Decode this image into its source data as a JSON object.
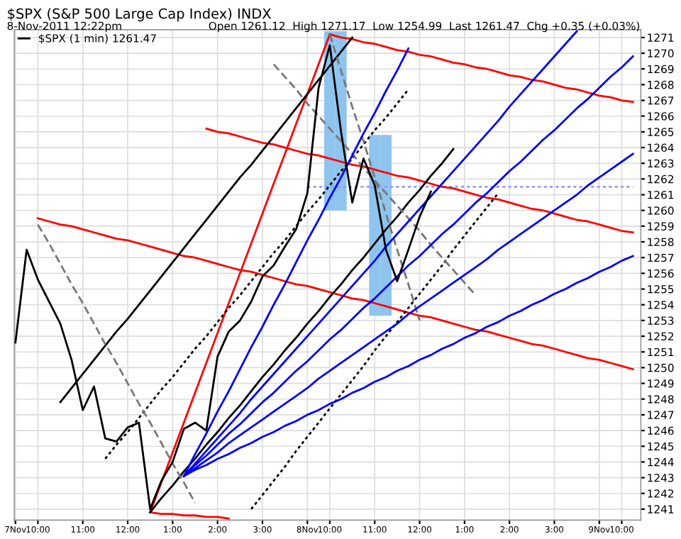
{
  "chart_data": {
    "type": "line",
    "title": "$SPX (S&P 500 Large Cap Index) INDX",
    "subtitle": "8-Nov-2011 12:22pm",
    "annotations": [
      "Open 1261.12  High 1271.17  Low 1254.99  Last 1261.47  Chg +0.35 (+0.03%)"
    ],
    "categories": [
      "7Nov",
      null,
      "10:00",
      null,
      null,
      null,
      "11:00",
      null,
      null,
      null,
      "12:00",
      null,
      null,
      null,
      "1:00",
      null,
      null,
      null,
      "2:00",
      null,
      null,
      null,
      "3:00",
      null,
      null,
      null,
      "8Nov",
      null,
      "10:00",
      null,
      null,
      null,
      "11:00",
      null,
      null,
      null,
      "12:00",
      null,
      null,
      null,
      "1:00",
      null,
      null,
      null,
      "2:00",
      null,
      null,
      null,
      "3:00",
      null,
      null,
      null,
      "9Nov",
      null,
      "10:00",
      null
    ],
    "ylim": [
      1240.3,
      1271.5
    ],
    "yticks": [
      1241,
      1242,
      1243,
      1244,
      1245,
      1246,
      1247,
      1248,
      1249,
      1250,
      1251,
      1252,
      1253,
      1254,
      1255,
      1256,
      1257,
      1258,
      1259,
      1260,
      1261,
      1262,
      1263,
      1264,
      1265,
      1266,
      1267,
      1268,
      1269,
      1270,
      1271
    ],
    "grid": true,
    "legend": "top left",
    "series": [
      {
        "type": "bar",
        "color": "#8ec4ee",
        "values": [
          null,
          null,
          null,
          null,
          null,
          null,
          null,
          null,
          null,
          null,
          null,
          null,
          null,
          null,
          null,
          null,
          null,
          null,
          null,
          null,
          null,
          null,
          null,
          null,
          null,
          null,
          null,
          null,
          11.4,
          11.4,
          null,
          null,
          null,
          null,
          null,
          null,
          null,
          null,
          null,
          null,
          null,
          null,
          null,
          null,
          null,
          null,
          null,
          null,
          null,
          null,
          null,
          null,
          null,
          null,
          null,
          null
        ],
        "base": [
          null,
          null,
          null,
          null,
          null,
          null,
          null,
          null,
          null,
          null,
          null,
          null,
          null,
          null,
          null,
          null,
          null,
          null,
          null,
          null,
          null,
          null,
          null,
          null,
          null,
          null,
          null,
          null,
          1260.0,
          1260.0,
          null,
          null,
          null,
          null,
          null,
          null,
          null,
          null,
          null,
          null,
          null,
          null,
          null,
          null,
          null,
          null,
          null,
          null,
          null,
          null,
          null,
          null,
          null,
          null,
          null,
          null
        ]
      },
      {
        "type": "bar",
        "color": "#8ec4ee",
        "values": [
          null,
          null,
          null,
          null,
          null,
          null,
          null,
          null,
          null,
          null,
          null,
          null,
          null,
          null,
          null,
          null,
          null,
          null,
          null,
          null,
          null,
          null,
          null,
          null,
          null,
          null,
          null,
          null,
          null,
          null,
          null,
          null,
          11.5,
          11.5,
          null,
          null,
          null,
          null,
          null,
          null,
          null,
          null,
          null,
          null,
          null,
          null,
          null,
          null,
          null,
          null,
          null,
          null,
          null,
          null,
          null,
          null
        ],
        "base": [
          null,
          null,
          null,
          null,
          null,
          null,
          null,
          null,
          null,
          null,
          null,
          null,
          null,
          null,
          null,
          null,
          null,
          null,
          null,
          null,
          null,
          null,
          null,
          null,
          null,
          null,
          null,
          null,
          null,
          null,
          null,
          null,
          1253.3,
          1253.3,
          null,
          null,
          null,
          null,
          null,
          null,
          null,
          null,
          null,
          null,
          null,
          null,
          null,
          null,
          null,
          null,
          null,
          null,
          null,
          null,
          null,
          null
        ]
      },
      {
        "color": "#9999ff",
        "line_style": "dotted",
        "values": [
          null,
          null,
          null,
          null,
          null,
          null,
          null,
          null,
          null,
          null,
          null,
          null,
          null,
          null,
          null,
          null,
          null,
          null,
          null,
          null,
          null,
          null,
          null,
          null,
          null,
          null,
          1261.5,
          1261.5,
          1261.5,
          1261.5,
          1261.5,
          1261.5,
          1261.5,
          1261.5,
          1261.5,
          1261.5,
          1261.5,
          1261.5,
          1261.5,
          1261.5,
          1261.5,
          1261.5,
          1261.5,
          1261.5,
          1261.5,
          1261.5,
          1261.5,
          1261.5,
          1261.5,
          1261.5,
          1261.5,
          1261.5,
          1261.5,
          1261.5,
          1261.5,
          1261.5
        ]
      },
      {
        "color": "#ff0000",
        "values": [
          null,
          null,
          null,
          null,
          null,
          null,
          null,
          null,
          null,
          null,
          null,
          null,
          1240.8,
          1242.7,
          1244.6,
          1246.5,
          1248.4,
          1250.3,
          1252.2,
          1254.1,
          1256.0,
          1257.9,
          1259.8,
          1261.7,
          1263.6,
          1265.5,
          1267.4,
          1269.3,
          1271.2,
          null,
          null,
          null,
          null,
          null,
          null,
          null,
          null,
          null,
          null,
          null,
          null,
          null,
          null,
          null,
          null,
          null,
          null,
          null,
          null,
          null,
          null,
          null,
          null,
          null,
          null,
          null
        ]
      },
      {
        "color": "#ff0000",
        "values": [
          null,
          null,
          null,
          null,
          null,
          null,
          null,
          null,
          null,
          null,
          null,
          null,
          null,
          null,
          null,
          null,
          null,
          null,
          null,
          null,
          null,
          null,
          null,
          null,
          null,
          null,
          null,
          null,
          1271.2,
          1271.0,
          1270.9,
          1270.7,
          1270.6,
          1270.4,
          1270.2,
          1270.1,
          1269.9,
          1269.8,
          1269.6,
          1269.4,
          1269.3,
          1269.1,
          1269.0,
          1268.8,
          1268.6,
          1268.5,
          1268.3,
          1268.2,
          1268.0,
          1267.8,
          1267.7,
          1267.5,
          1267.3,
          1267.2,
          1267.0,
          1266.9
        ]
      },
      {
        "color": "#ff0000",
        "values": [
          null,
          null,
          null,
          null,
          null,
          null,
          null,
          null,
          null,
          null,
          null,
          null,
          null,
          null,
          null,
          null,
          null,
          1265.2,
          1265.0,
          1264.9,
          1264.7,
          1264.5,
          1264.3,
          1264.2,
          1264.0,
          1263.8,
          1263.6,
          1263.5,
          1263.3,
          1263.1,
          1262.9,
          1262.8,
          1262.6,
          1262.4,
          1262.2,
          1262.1,
          1261.9,
          1261.7,
          1261.5,
          1261.4,
          1261.2,
          1261.0,
          1260.8,
          1260.7,
          1260.5,
          1260.3,
          1260.1,
          1260.0,
          1259.8,
          1259.6,
          1259.4,
          1259.3,
          1259.1,
          1258.9,
          1258.7,
          1258.6
        ]
      },
      {
        "color": "#ff0000",
        "values": [
          null,
          null,
          1259.5,
          1259.3,
          1259.1,
          1259.0,
          1258.8,
          1258.6,
          1258.4,
          1258.2,
          1258.1,
          1257.9,
          1257.7,
          1257.5,
          1257.3,
          1257.1,
          1257.0,
          1256.8,
          1256.6,
          1256.4,
          1256.2,
          1256.1,
          1255.9,
          1255.7,
          1255.5,
          1255.3,
          1255.2,
          1255.0,
          1254.8,
          1254.6,
          1254.4,
          1254.3,
          1254.1,
          1253.9,
          1253.7,
          1253.5,
          1253.3,
          1253.2,
          1253.0,
          1252.8,
          1252.6,
          1252.4,
          1252.3,
          1252.1,
          1251.9,
          1251.7,
          1251.5,
          1251.4,
          1251.2,
          1251.0,
          1250.8,
          1250.6,
          1250.5,
          1250.3,
          1250.1,
          1249.9
        ]
      },
      {
        "color": "#ff0000",
        "values": [
          null,
          null,
          null,
          null,
          null,
          null,
          null,
          null,
          null,
          null,
          null,
          null,
          1240.8,
          1240.7,
          1240.7,
          1240.6,
          1240.6,
          1240.5,
          1240.5,
          1240.4,
          null,
          null,
          null,
          null,
          null,
          null,
          null,
          null,
          null,
          null,
          null,
          null,
          null,
          null,
          null,
          null,
          null,
          null,
          null,
          null,
          null,
          null,
          null,
          null,
          null,
          null,
          null,
          null,
          null,
          null,
          null,
          null,
          null,
          null,
          null,
          null
        ]
      },
      {
        "color": "#000000",
        "values": [
          null,
          null,
          null,
          null,
          1247.8,
          1248.7,
          1249.6,
          1250.5,
          1251.4,
          1252.3,
          1253.1,
          1254.0,
          1254.9,
          1255.8,
          1256.7,
          1257.6,
          1258.5,
          1259.4,
          1260.3,
          1261.2,
          1262.1,
          1262.9,
          1263.8,
          1264.7,
          1265.6,
          1266.5,
          1267.4,
          1268.3,
          1269.2,
          1270.1,
          1271.0,
          null,
          null,
          null,
          null,
          null,
          null,
          null,
          null,
          null,
          null,
          null,
          null,
          null,
          null,
          null,
          null,
          null,
          null,
          null,
          null,
          null,
          null,
          null,
          null,
          null
        ]
      },
      {
        "color": "#000000",
        "values": [
          null,
          null,
          null,
          null,
          null,
          null,
          null,
          null,
          null,
          null,
          null,
          null,
          1240.8,
          1241.7,
          1242.5,
          1243.4,
          1244.2,
          1245.1,
          1245.9,
          1246.8,
          1247.6,
          1248.5,
          1249.4,
          1250.2,
          1251.1,
          1251.9,
          1252.8,
          1253.6,
          1254.5,
          1255.3,
          1256.2,
          1257.0,
          1257.9,
          1258.8,
          1259.6,
          1260.5,
          1261.3,
          1262.2,
          1263.0,
          1263.9,
          null,
          null,
          null,
          null,
          null,
          null,
          null,
          null,
          null,
          null,
          null,
          null,
          null,
          null,
          null,
          null
        ]
      },
      {
        "color": "#000000",
        "line_style": "dotted",
        "values": [
          null,
          null,
          null,
          null,
          null,
          null,
          null,
          null,
          1244.2,
          1245.1,
          1245.9,
          1246.8,
          1247.7,
          1248.6,
          1249.4,
          1250.3,
          1251.2,
          1252.0,
          1252.9,
          1253.8,
          1254.6,
          1255.5,
          1256.4,
          1257.3,
          1258.1,
          1259.0,
          1259.9,
          1260.7,
          1261.6,
          1262.5,
          1263.3,
          1264.2,
          1265.1,
          1265.9,
          1266.8,
          1267.7,
          null,
          null,
          null,
          null,
          null,
          null,
          null,
          null,
          null,
          null,
          null,
          null,
          null,
          null,
          null,
          null,
          null,
          null,
          null,
          null
        ]
      },
      {
        "color": "#000000",
        "line_style": "dotted",
        "values": [
          null,
          null,
          null,
          null,
          null,
          null,
          null,
          null,
          null,
          null,
          null,
          null,
          null,
          null,
          null,
          null,
          null,
          null,
          null,
          null,
          null,
          1241.0,
          1241.9,
          1242.8,
          1243.7,
          1244.7,
          1245.6,
          1246.5,
          1247.4,
          1248.3,
          1249.2,
          1250.1,
          1251.1,
          1252.0,
          1252.9,
          1253.8,
          1254.7,
          1255.6,
          1256.5,
          1257.5,
          1258.4,
          1259.3,
          1260.2,
          1261.1,
          null,
          null,
          null,
          null,
          null,
          null,
          null,
          null,
          null,
          null,
          null,
          null
        ]
      },
      {
        "color": "#777777",
        "line_style": "dashed",
        "values": [
          null,
          null,
          1259.1,
          1257.9,
          1256.6,
          1255.3,
          1254.1,
          1252.8,
          1251.5,
          1250.3,
          1249.0,
          1247.7,
          1246.5,
          1245.2,
          1243.9,
          1242.7,
          1241.4,
          null,
          null,
          null,
          null,
          null,
          null,
          null,
          null,
          null,
          null,
          null,
          null,
          null,
          null,
          null,
          null,
          null,
          null,
          null,
          null,
          null,
          null,
          null,
          null,
          null,
          null,
          null,
          null,
          null,
          null,
          null,
          null,
          null,
          null,
          null,
          null,
          null,
          null,
          null
        ]
      },
      {
        "color": "#777777",
        "line_style": "dashed",
        "values": [
          null,
          null,
          null,
          null,
          null,
          null,
          null,
          null,
          null,
          null,
          null,
          null,
          null,
          null,
          null,
          null,
          null,
          null,
          null,
          null,
          null,
          null,
          null,
          null,
          null,
          null,
          null,
          null,
          1271.2,
          1268.9,
          1266.6,
          1264.4,
          1262.1,
          1259.8,
          1257.5,
          1255.3,
          1253.0,
          null,
          null,
          null,
          null,
          null,
          null,
          null,
          null,
          null,
          null,
          null,
          null,
          null,
          null,
          null,
          null,
          null,
          null,
          null
        ]
      },
      {
        "color": "#777777",
        "line_style": "dashed",
        "values": [
          null,
          null,
          null,
          null,
          null,
          null,
          null,
          null,
          null,
          null,
          null,
          null,
          null,
          null,
          null,
          null,
          null,
          null,
          null,
          null,
          null,
          null,
          null,
          1269.3,
          1268.5,
          1267.7,
          1266.8,
          1266.0,
          1265.2,
          1264.4,
          1263.6,
          1262.7,
          1261.9,
          1261.1,
          1260.3,
          1259.5,
          1258.7,
          1257.8,
          1257.0,
          1256.2,
          1255.4,
          1254.6,
          null,
          null,
          null,
          null,
          null,
          null,
          null,
          null,
          null,
          null,
          null,
          null,
          null,
          null
        ]
      },
      {
        "color": "#0000ff",
        "values": [
          null,
          null,
          null,
          null,
          null,
          null,
          null,
          null,
          null,
          null,
          null,
          null,
          null,
          null,
          null,
          1243.1,
          1244.5,
          1245.8,
          1247.2,
          1248.5,
          1249.9,
          1251.3,
          1252.6,
          1254.0,
          1255.3,
          1256.7,
          1258.1,
          1259.4,
          1260.8,
          1262.1,
          1263.5,
          1264.9,
          1266.2,
          1267.6,
          1268.9,
          1270.3,
          null,
          null,
          null,
          null,
          null,
          null,
          null,
          null,
          null,
          null,
          null,
          null,
          null,
          null,
          null,
          null,
          null,
          null,
          null,
          null
        ]
      },
      {
        "color": "#0000ff",
        "values": [
          null,
          null,
          null,
          null,
          null,
          null,
          null,
          null,
          null,
          null,
          null,
          null,
          null,
          null,
          null,
          1243.1,
          1243.9,
          1244.7,
          1245.5,
          1246.3,
          1247.1,
          1248.0,
          1248.8,
          1249.6,
          1250.4,
          1251.2,
          1252.0,
          1252.8,
          1253.6,
          1254.4,
          1255.2,
          1256.0,
          1256.8,
          1257.7,
          1258.5,
          1259.3,
          1260.1,
          1260.9,
          1261.7,
          1262.5,
          1263.3,
          1264.1,
          1264.9,
          1265.7,
          1266.6,
          1267.4,
          1268.2,
          1269.0,
          1269.8,
          1270.6,
          1271.4,
          null,
          null,
          null,
          null,
          null
        ]
      },
      {
        "color": "#0000ff",
        "values": [
          null,
          null,
          null,
          null,
          null,
          null,
          null,
          null,
          null,
          null,
          null,
          null,
          null,
          null,
          null,
          1243.1,
          1243.8,
          1244.4,
          1245.1,
          1245.8,
          1246.4,
          1247.1,
          1247.8,
          1248.4,
          1249.1,
          1249.8,
          1250.4,
          1251.1,
          1251.8,
          1252.4,
          1253.1,
          1253.8,
          1254.4,
          1255.1,
          1255.8,
          1256.5,
          1257.1,
          1257.8,
          1258.5,
          1259.1,
          1259.8,
          1260.5,
          1261.1,
          1261.8,
          1262.5,
          1263.1,
          1263.8,
          1264.5,
          1265.1,
          1265.8,
          1266.5,
          1267.1,
          1267.8,
          1268.5,
          1269.1,
          1269.8
        ]
      },
      {
        "color": "#0000ff",
        "values": [
          null,
          null,
          null,
          null,
          null,
          null,
          null,
          null,
          null,
          null,
          null,
          null,
          null,
          null,
          null,
          1243.1,
          1243.6,
          1244.1,
          1244.6,
          1245.2,
          1245.7,
          1246.2,
          1246.7,
          1247.2,
          1247.7,
          1248.2,
          1248.7,
          1249.3,
          1249.8,
          1250.3,
          1250.8,
          1251.3,
          1251.8,
          1252.3,
          1252.8,
          1253.4,
          1253.9,
          1254.4,
          1254.9,
          1255.4,
          1255.9,
          1256.4,
          1256.9,
          1257.5,
          1258.0,
          1258.5,
          1259.0,
          1259.5,
          1260.0,
          1260.5,
          1261.0,
          1261.6,
          1262.1,
          1262.6,
          1263.1,
          1263.6
        ]
      },
      {
        "color": "#0000ff",
        "values": [
          null,
          null,
          null,
          null,
          null,
          null,
          null,
          null,
          null,
          null,
          null,
          null,
          null,
          null,
          null,
          1243.1,
          1243.5,
          1243.8,
          1244.2,
          1244.5,
          1244.9,
          1245.2,
          1245.6,
          1245.9,
          1246.3,
          1246.6,
          1247.0,
          1247.3,
          1247.7,
          1248.0,
          1248.4,
          1248.7,
          1249.1,
          1249.4,
          1249.8,
          1250.1,
          1250.5,
          1250.8,
          1251.2,
          1251.5,
          1251.9,
          1252.2,
          1252.6,
          1252.9,
          1253.3,
          1253.6,
          1254.0,
          1254.3,
          1254.7,
          1255.0,
          1255.4,
          1255.7,
          1256.1,
          1256.4,
          1256.8,
          1257.1
        ]
      },
      {
        "name": "$SPX (1 min) 1261.47",
        "color": "#000000",
        "values": [
          1251.6,
          1257.5,
          1255.6,
          1254.2,
          1252.8,
          1250.5,
          1247.3,
          1248.8,
          1245.5,
          1245.3,
          1246.2,
          1246.5,
          1241.0,
          1242.8,
          1244.0,
          1246.1,
          1246.5,
          1246.0,
          1250.7,
          1252.3,
          1253.0,
          1254.2,
          1255.8,
          1256.5,
          1257.7,
          1258.8,
          1261.1,
          1267.8,
          1270.5,
          1265.0,
          1260.5,
          1263.3,
          1261.6,
          1257.5,
          1255.5,
          1257.5,
          1259.6,
          1261.2,
          null,
          null,
          null,
          null,
          null,
          null,
          null,
          null,
          null,
          null,
          null,
          null,
          null,
          null,
          null,
          null,
          null,
          null
        ]
      }
    ]
  }
}
